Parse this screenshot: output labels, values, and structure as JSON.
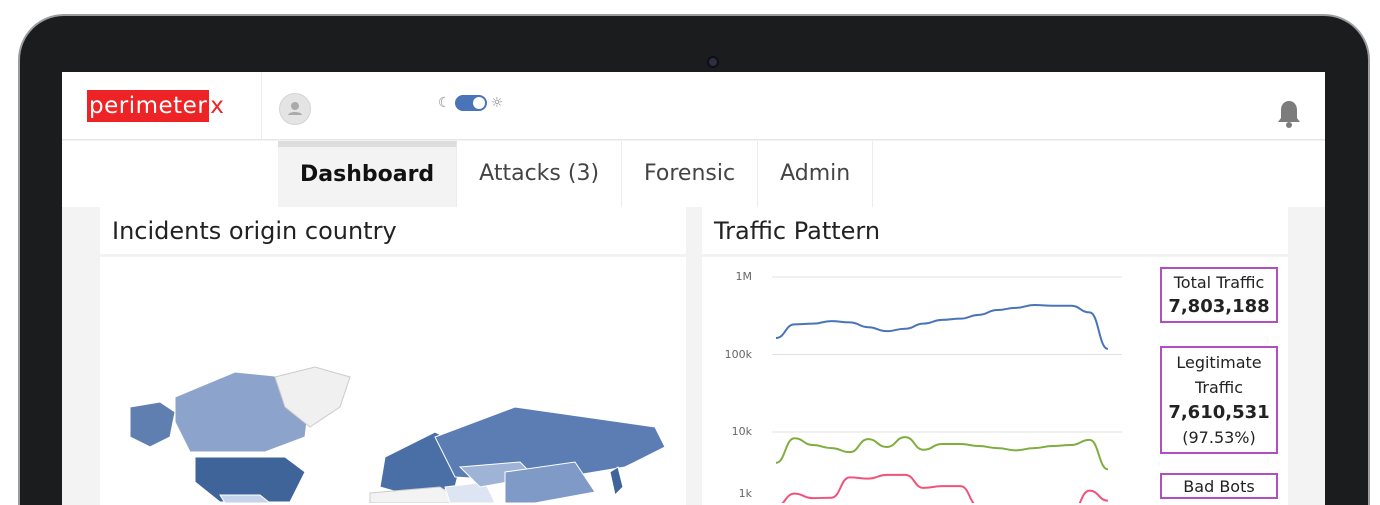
{
  "brand": {
    "logo_main": "perimeter",
    "logo_suffix": "x",
    "accent": "#ee2326"
  },
  "header": {
    "theme_toggle": {
      "state": "on",
      "left_icon": "moon-icon",
      "right_icon": "sun-icon",
      "color": "#4a74b8"
    },
    "avatar_icon": "user-icon",
    "notification_icon": "bell-icon"
  },
  "nav": {
    "tabs": [
      {
        "label": "Dashboard",
        "active": true
      },
      {
        "label": "Attacks (3)"
      },
      {
        "label": "Forensic"
      },
      {
        "label": "Admin"
      }
    ]
  },
  "map_panel": {
    "title": "Incidents origin country"
  },
  "traffic_panel": {
    "title": "Traffic Pattern",
    "stats": [
      {
        "label": "Total Traffic",
        "value": "7,803,188"
      },
      {
        "label": "Legitimate Traffic",
        "value": "7,610,531",
        "percent": "(97.53%)"
      },
      {
        "label": "Bad Bots"
      }
    ]
  },
  "chart_data": {
    "type": "line",
    "yscale": "log",
    "ytick_labels": [
      "1M",
      "100k",
      "10k",
      "1k"
    ],
    "grid": true,
    "series": [
      {
        "color": "#4a74b8",
        "values": [
          163000,
          245000,
          250000,
          270000,
          260000,
          225000,
          200000,
          215000,
          250000,
          280000,
          290000,
          325000,
          375000,
          400000,
          435000,
          425000,
          425000,
          350000,
          118000
        ]
      },
      {
        "color": "#7fae3f",
        "values": [
          4000,
          8300,
          6800,
          6200,
          5500,
          8100,
          6400,
          8600,
          5900,
          7000,
          7000,
          6600,
          6200,
          5800,
          6200,
          6600,
          6800,
          7900,
          3300
        ]
      },
      {
        "color": "#f0537a",
        "values": [
          1100,
          1600,
          1400,
          1420,
          2600,
          2500,
          2800,
          2800,
          1900,
          2000,
          2000,
          1100,
          800,
          700,
          700,
          800,
          900,
          1750,
          1300
        ]
      }
    ]
  }
}
